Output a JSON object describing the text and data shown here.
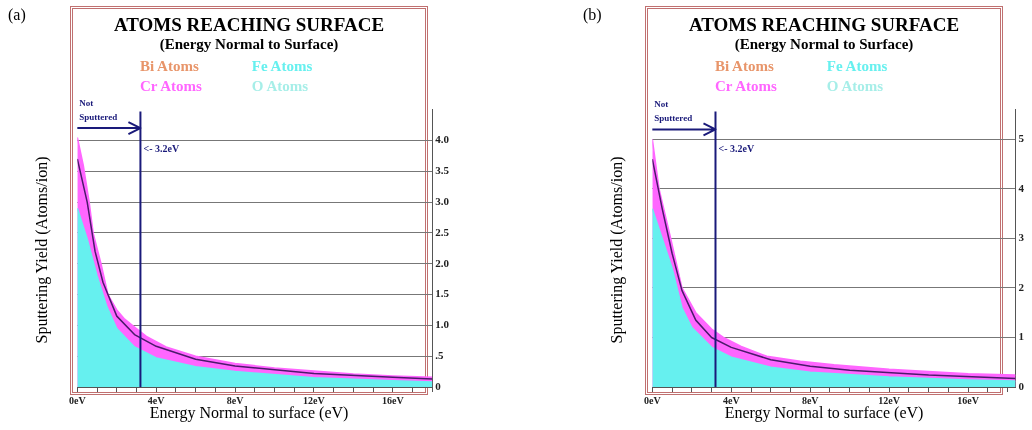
{
  "chart_data": [
    {
      "type": "area",
      "title": "ATOMS REACHING SURFACE",
      "subtitle": "(Energy Normal to Surface)",
      "xlabel": "Energy Normal to surface (eV)",
      "ylabel": "Sputtering Yield (Atoms/ion)",
      "annotations": [
        "(a)",
        {
          "text": "Not Sputtered",
          "x": 3.2,
          "y": 4.2
        }
      ],
      "xlim": [
        0,
        18
      ],
      "ylim": [
        0,
        4.5
      ],
      "xticks": [
        {
          "value": 0,
          "label": "0eV"
        },
        {
          "value": 1,
          "label": null
        },
        {
          "value": 2,
          "label": null
        },
        {
          "value": 3,
          "label": null
        },
        {
          "value": 4,
          "label": "4eV"
        },
        {
          "value": 5,
          "label": null
        },
        {
          "value": 6,
          "label": null
        },
        {
          "value": 7,
          "label": null
        },
        {
          "value": 8,
          "label": "8eV"
        },
        {
          "value": 9,
          "label": null
        },
        {
          "value": 10,
          "label": null
        },
        {
          "value": 11,
          "label": null
        },
        {
          "value": 12,
          "label": "12eV"
        },
        {
          "value": 13,
          "label": null
        },
        {
          "value": 14,
          "label": null
        },
        {
          "value": 15,
          "label": null
        },
        {
          "value": 16,
          "label": "16eV"
        },
        {
          "value": 17,
          "label": null
        },
        {
          "value": 18,
          "label": null
        }
      ],
      "yticks": [
        0,
        {
          "value": 0.5,
          "label": ".5"
        },
        {
          "value": 1,
          "label": "1.0"
        },
        {
          "value": 1.5,
          "label": "1.5"
        },
        {
          "value": 2,
          "label": "2.0"
        },
        {
          "value": 2.5,
          "label": "2.5"
        },
        {
          "value": 3,
          "label": "3.0"
        },
        {
          "value": 3.5,
          "label": "3.5"
        },
        {
          "value": 4,
          "label": "4.0"
        }
      ],
      "grid": "y",
      "legend": "top",
      "marker": "none",
      "line_style": "solid",
      "ref_lines": [
        {
          "axis": "x",
          "value": 3.2,
          "label": "<- 3.2eV",
          "color": "#1a1a7a"
        }
      ],
      "series": [
        {
          "name": "Bi Atoms",
          "color": "#e8956a"
        },
        {
          "name": "Cr Atoms",
          "color": "#ff66ff",
          "x": [
            0,
            0.3,
            0.6,
            0.8,
            1.2,
            1.55,
            2,
            2.4,
            2.9,
            3.5,
            4.5,
            6,
            8,
            10,
            12,
            14,
            16,
            18
          ],
          "values": [
            4.05,
            3.6,
            3.0,
            2.5,
            2.0,
            1.5,
            1.25,
            1.1,
            0.97,
            0.82,
            0.65,
            0.5,
            0.38,
            0.31,
            0.26,
            0.21,
            0.18,
            0.16
          ]
        },
        {
          "type": "line",
          "color": "#4b1a6b",
          "x": [
            0,
            0.5,
            0.9,
            1.3,
            2,
            2.9,
            4,
            6,
            8,
            12,
            16,
            18
          ],
          "values": [
            3.7,
            3.0,
            2.2,
            1.7,
            1.15,
            0.85,
            0.66,
            0.45,
            0.34,
            0.22,
            0.16,
            0.13
          ]
        },
        {
          "name": "Fe Atoms",
          "color": "#66f0ef",
          "x": [
            0,
            0.5,
            1,
            1.5,
            2,
            2.9,
            4,
            6,
            8,
            12,
            16,
            18
          ],
          "values": [
            2.9,
            2.4,
            1.8,
            1.3,
            0.95,
            0.65,
            0.47,
            0.33,
            0.25,
            0.15,
            0.1,
            0.08
          ]
        },
        {
          "name": "O Atoms",
          "color": "#a6eee8"
        }
      ]
    },
    {
      "type": "area",
      "title": "ATOMS REACHING SURFACE",
      "subtitle": "(Energy Normal to Surface)",
      "xlabel": "Energy Normal to surface (eV)",
      "ylabel": "Sputtering Yield (Atoms/ion)",
      "annotations": [
        "(b)",
        {
          "text": "Not Sputtered",
          "x": 3.2,
          "y": 5.2
        }
      ],
      "xlim": [
        0,
        18.4
      ],
      "ylim": [
        0,
        5.6
      ],
      "xticks": [
        {
          "value": 0,
          "label": "0eV"
        },
        {
          "value": 1,
          "label": null
        },
        {
          "value": 2,
          "label": null
        },
        {
          "value": 3,
          "label": null
        },
        {
          "value": 4,
          "label": "4eV"
        },
        {
          "value": 5,
          "label": null
        },
        {
          "value": 6,
          "label": null
        },
        {
          "value": 7,
          "label": null
        },
        {
          "value": 8,
          "label": "8eV"
        },
        {
          "value": 9,
          "label": null
        },
        {
          "value": 10,
          "label": null
        },
        {
          "value": 11,
          "label": null
        },
        {
          "value": 12,
          "label": "12eV"
        },
        {
          "value": 13,
          "label": null
        },
        {
          "value": 14,
          "label": null
        },
        {
          "value": 15,
          "label": null
        },
        {
          "value": 16,
          "label": "16eV"
        },
        {
          "value": 17,
          "label": null
        },
        {
          "value": 18,
          "label": null
        }
      ],
      "yticks": [
        0,
        1,
        2,
        3,
        4,
        5
      ],
      "grid": "y",
      "legend": "top",
      "marker": "none",
      "line_style": "solid",
      "ref_lines": [
        {
          "axis": "x",
          "value": 3.2,
          "label": "<- 3.2eV",
          "color": "#1a1a7a"
        }
      ],
      "series": [
        {
          "name": "Bi Atoms",
          "color": "#e8956a"
        },
        {
          "name": "Cr Atoms",
          "color": "#ff66ff",
          "x": [
            0,
            0.34,
            0.93,
            1.5,
            2.2,
            3,
            3.6,
            4.5,
            5.8,
            7.5,
            9.2,
            12,
            14.2,
            16,
            18.4
          ],
          "values": [
            5.0,
            4.0,
            3.0,
            2.0,
            1.5,
            1.17,
            1.0,
            0.82,
            0.62,
            0.52,
            0.45,
            0.36,
            0.31,
            0.27,
            0.24
          ]
        },
        {
          "type": "line",
          "color": "#4b1a6b",
          "x": [
            0,
            0.5,
            1,
            1.5,
            2.2,
            3,
            4,
            6,
            8,
            10,
            14,
            18.4
          ],
          "values": [
            4.6,
            3.6,
            2.7,
            1.95,
            1.35,
            1.0,
            0.8,
            0.55,
            0.42,
            0.34,
            0.24,
            0.17
          ]
        },
        {
          "name": "Fe Atoms",
          "color": "#66f0ef",
          "x": [
            0,
            0.5,
            1,
            1.5,
            2,
            3,
            4,
            6,
            8,
            12,
            16,
            18.4
          ],
          "values": [
            3.6,
            3.0,
            2.4,
            1.6,
            1.2,
            0.8,
            0.6,
            0.4,
            0.3,
            0.2,
            0.14,
            0.12
          ]
        },
        {
          "name": "O Atoms",
          "color": "#a6eee8"
        }
      ]
    }
  ]
}
